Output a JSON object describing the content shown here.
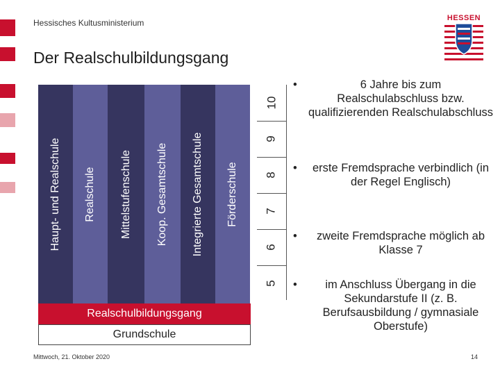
{
  "header": {
    "ministry": "Hessisches Kultusministerium",
    "logo_text": "HESSEN"
  },
  "title": "Der Realschulbildungsgang",
  "colors": {
    "accent_red": "#c8102e",
    "columns": [
      "#36355f",
      "#5e5e99",
      "#36355f",
      "#5e5e99",
      "#36355f",
      "#5e5e99"
    ]
  },
  "columns": [
    "Haupt- und Realschule",
    "Realschule",
    "Mittelstufenschule",
    "Koop. Gesamtschule",
    "Integrierte Gesamtschule",
    "Förderschule"
  ],
  "grades": [
    "10",
    "9",
    "8",
    "7",
    "6",
    "5"
  ],
  "bars": {
    "red": "Realschulbildungsgang",
    "base": "Grundschule"
  },
  "bullets": [
    "6 Jahre bis zum Realschulabschluss bzw. qualifizierenden Realschulabschluss",
    "erste Fremdsprache verbindlich (in der Regel Englisch)",
    "zweite Fremdsprache möglich ab Klasse 7",
    "im Anschluss Übergang in die Sekundarstufe II (z. B. Berufsausbildung / gymnasiale Oberstufe)"
  ],
  "footer": {
    "date": "Mittwoch, 21. Oktober 2020",
    "page": "14"
  }
}
